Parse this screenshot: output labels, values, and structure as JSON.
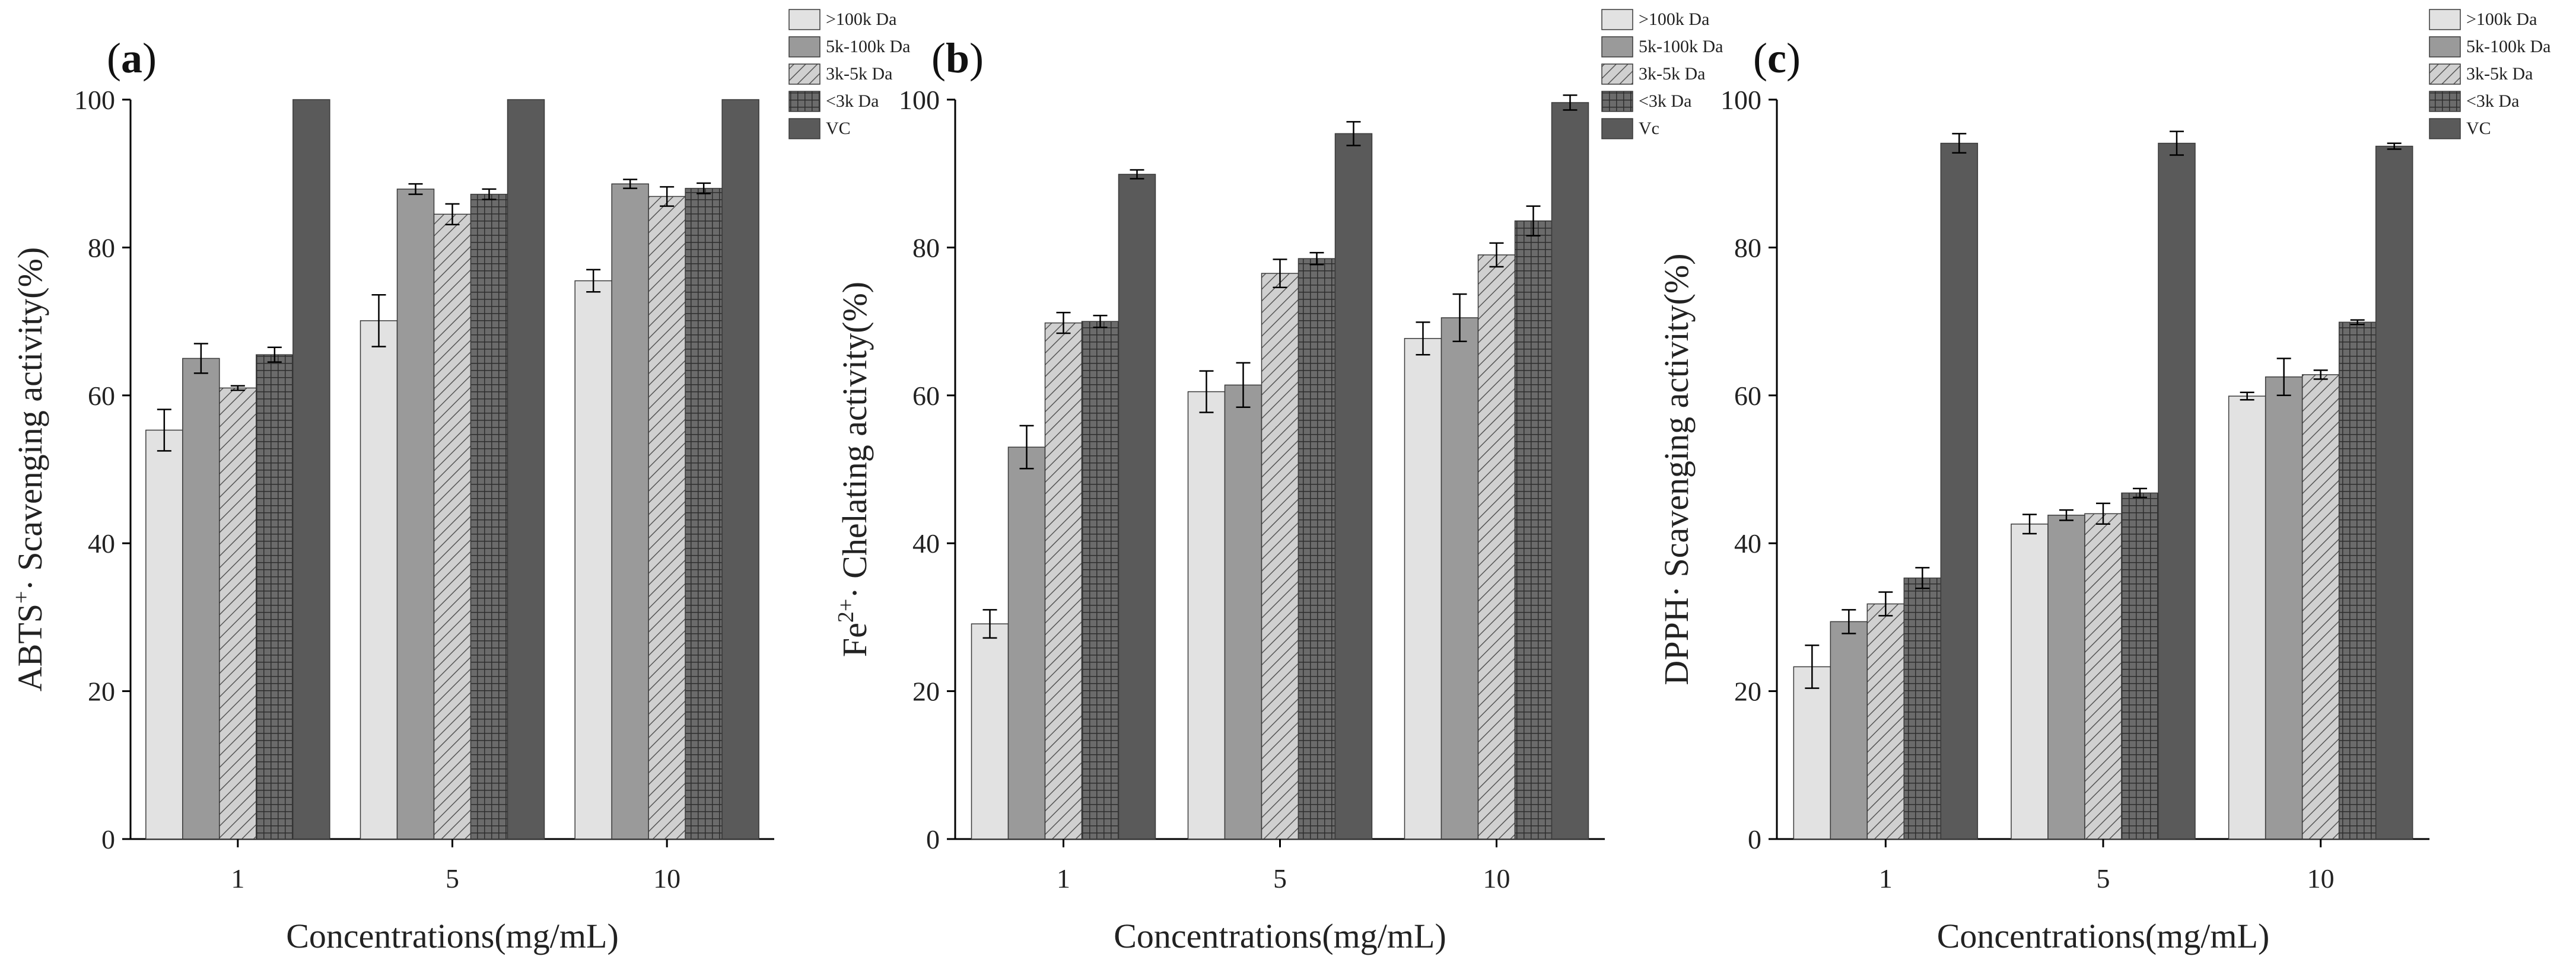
{
  "chart_data": [
    {
      "type": "bar",
      "panel_label": "a",
      "title_paren_open": "(",
      "title_paren_close": ")",
      "ylabel_main": "ABTS",
      "ylabel_sup": "+",
      "ylabel_rest": "· Scavenging activity(%)",
      "xlabel": "Concentrations(mg/mL)",
      "categories": [
        "1",
        "5",
        "10"
      ],
      "ylim": [
        0,
        100
      ],
      "yticks": [
        "0",
        "20",
        "40",
        "60",
        "80",
        "100"
      ],
      "ytick_values": [
        0,
        20,
        40,
        60,
        80,
        100
      ],
      "series": [
        {
          "name": ">100k Da",
          "values": [
            55.3,
            70.1,
            75.5
          ],
          "errors": [
            2.8,
            3.5,
            1.5
          ]
        },
        {
          "name": "5k-100k Da",
          "values": [
            65.0,
            87.9,
            88.6
          ],
          "errors": [
            2.0,
            0.7,
            0.6
          ]
        },
        {
          "name": "3k-5k Da",
          "values": [
            61.0,
            84.5,
            86.9
          ],
          "errors": [
            0.3,
            1.4,
            1.3
          ]
        },
        {
          "name": "<3k Da",
          "values": [
            65.5,
            87.2,
            88.0
          ],
          "errors": [
            1.0,
            0.7,
            0.7
          ]
        },
        {
          "name": "VC",
          "values": [
            100,
            100,
            100
          ],
          "errors": [
            0,
            0,
            0
          ]
        }
      ],
      "legend_position": "top-right"
    },
    {
      "type": "bar",
      "panel_label": "b",
      "title_paren_open": "(",
      "title_paren_close": ")",
      "ylabel_main": "Fe",
      "ylabel_sup": "2+",
      "ylabel_rest": "· Chelating activity(%)",
      "xlabel": "Concentrations(mg/mL)",
      "categories": [
        "1",
        "5",
        "10"
      ],
      "ylim": [
        0,
        100
      ],
      "yticks": [
        "0",
        "20",
        "40",
        "60",
        "80",
        "100"
      ],
      "ytick_values": [
        0,
        20,
        40,
        60,
        80,
        100
      ],
      "series": [
        {
          "name": ">100k Da",
          "values": [
            29.1,
            60.5,
            67.7
          ],
          "errors": [
            1.9,
            2.8,
            2.2
          ]
        },
        {
          "name": "5k-100k Da",
          "values": [
            53.0,
            61.4,
            70.5
          ],
          "errors": [
            2.9,
            3.0,
            3.2
          ]
        },
        {
          "name": "3k-5k Da",
          "values": [
            69.8,
            76.5,
            79.0
          ],
          "errors": [
            1.4,
            1.9,
            1.6
          ]
        },
        {
          "name": "<3k Da",
          "values": [
            70.0,
            78.5,
            83.6
          ],
          "errors": [
            0.8,
            0.8,
            2.0
          ]
        },
        {
          "name": "Vc",
          "values": [
            89.9,
            95.4,
            99.6
          ],
          "errors": [
            0.6,
            1.6,
            1.0
          ]
        }
      ],
      "legend_position": "top-right"
    },
    {
      "type": "bar",
      "panel_label": "c",
      "title_paren_open": "(",
      "title_paren_close": ")",
      "ylabel_main": "DPPH",
      "ylabel_sup": "",
      "ylabel_rest": "· Scavenging activity(%)",
      "xlabel": "Concentrations(mg/mL)",
      "categories": [
        "1",
        "5",
        "10"
      ],
      "ylim": [
        0,
        100
      ],
      "yticks": [
        "0",
        "20",
        "40",
        "60",
        "80",
        "100"
      ],
      "ytick_values": [
        0,
        20,
        40,
        60,
        80,
        100
      ],
      "series": [
        {
          "name": ">100k Da",
          "values": [
            23.3,
            42.6,
            59.9
          ],
          "errors": [
            2.9,
            1.3,
            0.5
          ]
        },
        {
          "name": "5k-100k Da",
          "values": [
            29.4,
            43.8,
            62.5
          ],
          "errors": [
            1.6,
            0.7,
            2.5
          ]
        },
        {
          "name": "3k-5k Da",
          "values": [
            31.8,
            44.0,
            62.8
          ],
          "errors": [
            1.6,
            1.4,
            0.6
          ]
        },
        {
          "name": "<3k Da",
          "values": [
            35.3,
            46.8,
            69.9
          ],
          "errors": [
            1.4,
            0.6,
            0.3
          ]
        },
        {
          "name": "VC",
          "values": [
            94.1,
            94.1,
            93.7
          ],
          "errors": [
            1.3,
            1.6,
            0.4
          ]
        }
      ],
      "legend_position": "top-right"
    }
  ]
}
